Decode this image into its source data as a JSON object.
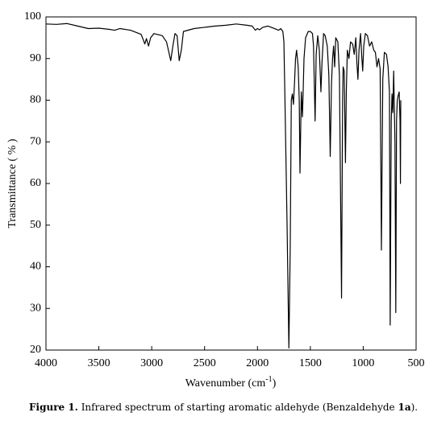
{
  "chart_data": {
    "type": "line",
    "x_label": {
      "text": "Wavenumber (cm",
      "sup": "-1",
      "end": ")"
    },
    "y_label": "Transmittance ( % )",
    "xlim": [
      4000,
      500
    ],
    "xticks": [
      4000,
      3500,
      3000,
      2500,
      2000,
      1500,
      1000,
      500
    ],
    "ylim": [
      20,
      100
    ],
    "yticks": [
      20,
      30,
      40,
      50,
      60,
      70,
      80,
      90,
      100
    ],
    "color": "#000000",
    "x": [
      4000,
      3900,
      3800,
      3700,
      3600,
      3500,
      3400,
      3350,
      3300,
      3200,
      3100,
      3080,
      3065,
      3050,
      3030,
      3010,
      2980,
      2900,
      2860,
      2820,
      2800,
      2780,
      2760,
      2740,
      2720,
      2700,
      2600,
      2500,
      2400,
      2300,
      2200,
      2100,
      2050,
      2020,
      2000,
      1980,
      1950,
      1900,
      1850,
      1800,
      1780,
      1760,
      1750,
      1740,
      1720,
      1703,
      1690,
      1680,
      1670,
      1660,
      1650,
      1640,
      1630,
      1615,
      1605,
      1598,
      1590,
      1585,
      1575,
      1568,
      1560,
      1545,
      1520,
      1500,
      1480,
      1470,
      1455,
      1445,
      1430,
      1415,
      1400,
      1390,
      1375,
      1360,
      1340,
      1325,
      1312,
      1300,
      1290,
      1280,
      1270,
      1260,
      1240,
      1225,
      1205,
      1195,
      1190,
      1180,
      1168,
      1160,
      1150,
      1135,
      1120,
      1100,
      1085,
      1070,
      1060,
      1050,
      1040,
      1025,
      1015,
      1005,
      995,
      980,
      960,
      940,
      920,
      900,
      885,
      870,
      855,
      840,
      828,
      815,
      800,
      780,
      765,
      752,
      745,
      735,
      728,
      720,
      712,
      700,
      692,
      685,
      678,
      670,
      660,
      652,
      648,
      645
    ],
    "values": [
      98.3,
      98.2,
      98.4,
      97.8,
      97.2,
      97.3,
      97.0,
      96.8,
      97.2,
      96.8,
      95.8,
      94.5,
      93.5,
      94.8,
      93.0,
      95,
      96,
      95.5,
      94,
      89.5,
      93,
      96,
      95.5,
      89.5,
      92,
      96.5,
      97.2,
      97.5,
      97.8,
      98,
      98.3,
      98.0,
      97.8,
      96.8,
      97.2,
      96.9,
      97.5,
      97.8,
      97.3,
      96.8,
      97.2,
      96.5,
      94,
      80,
      50,
      20.5,
      45,
      80,
      81.5,
      79,
      84,
      90,
      92,
      88,
      80,
      62.5,
      75,
      82,
      76,
      82,
      90,
      95,
      96.5,
      96.5,
      96,
      93,
      75,
      91,
      95.5,
      92,
      82,
      89,
      96,
      95.5,
      93,
      86,
      66.5,
      84,
      90,
      93,
      88,
      95,
      94,
      86,
      32.5,
      80,
      88,
      87,
      65,
      82,
      92,
      90,
      94,
      93.5,
      91,
      95,
      89,
      85,
      92,
      96,
      91,
      87,
      93,
      96,
      95.5,
      93,
      94,
      92,
      91.5,
      88,
      90,
      87.5,
      44,
      85,
      91.5,
      91,
      88,
      82,
      26,
      75,
      81.5,
      77,
      87,
      70,
      29,
      75,
      80,
      81,
      82,
      75,
      60,
      80
    ]
  },
  "caption": {
    "label": "Figure 1.",
    "text": "Infrared spectrum of starting aromatic aldehyde (Benzaldehyde",
    "compound": "1a",
    "end": ")."
  }
}
